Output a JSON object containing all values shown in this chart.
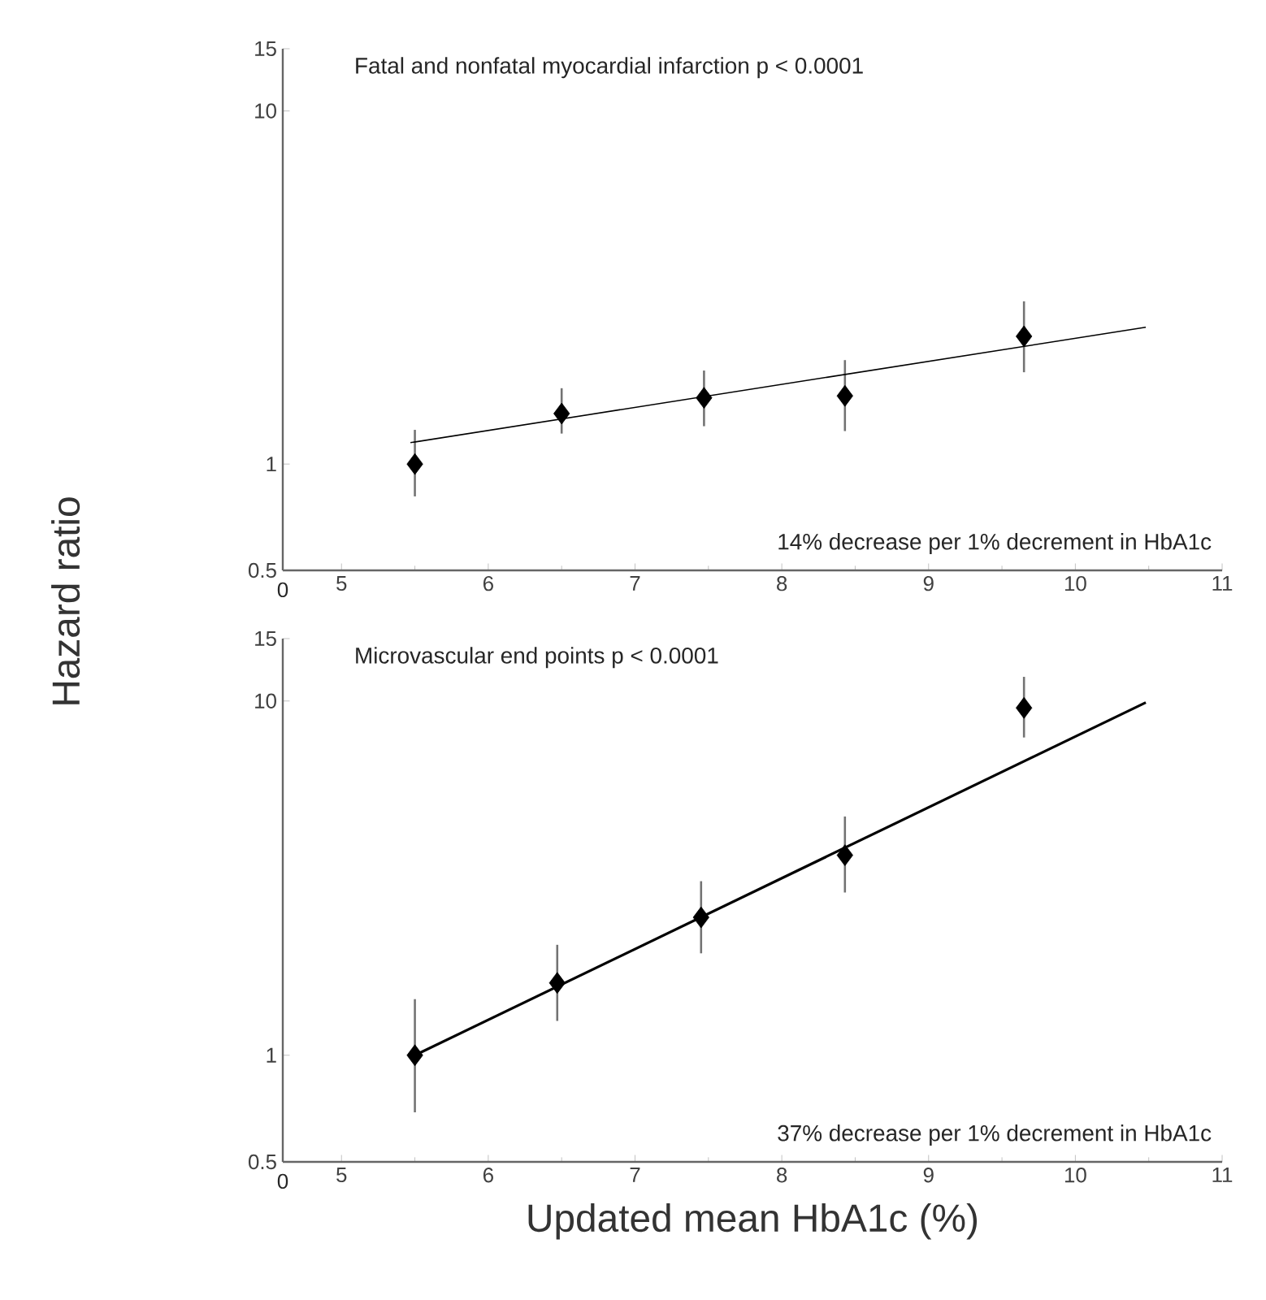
{
  "chart_data": [
    {
      "type": "scatter",
      "title": "Fatal and nonfatal myocardial infarction p < 0.0001",
      "ylabel": "Hazard ratio",
      "annotations": [
        "14% decrease per 1% decrement in HbA1c",
        "0"
      ],
      "log": "y",
      "grid": false,
      "line_style": "solid",
      "xlim": [
        4.6,
        11
      ],
      "ylim": [
        0.5,
        15
      ],
      "xticks": [
        5,
        6,
        7,
        8,
        9,
        10,
        11
      ],
      "yticks": [
        0.5,
        1,
        10,
        15
      ],
      "series": [
        {
          "color": "#000000",
          "marker": "diamond",
          "x": [
            5.5,
            6.5,
            7.47,
            8.43,
            9.65
          ],
          "values": [
            1.0,
            1.39,
            1.54,
            1.56,
            2.3
          ],
          "errors": [
            [
              0.81,
              1.25
            ],
            [
              1.22,
              1.64
            ],
            [
              1.28,
              1.84
            ],
            [
              1.24,
              1.97
            ],
            [
              1.82,
              2.89
            ]
          ]
        },
        {
          "type": "line",
          "marker": "none",
          "color": "#000000",
          "x": [
            5.47,
            10.48
          ],
          "values": [
            1.15,
            2.44
          ]
        }
      ]
    },
    {
      "type": "scatter",
      "title": "Microvascular end points p < 0.0001",
      "xlabel": "Updated mean HbA1c (%)",
      "annotations": [
        "37% decrease per 1% decrement in HbA1c",
        "0"
      ],
      "log": "y",
      "grid": false,
      "line_style": "solid",
      "xlim": [
        4.6,
        11
      ],
      "ylim": [
        0.5,
        15
      ],
      "xticks": [
        5,
        6,
        7,
        8,
        9,
        10,
        11
      ],
      "yticks": [
        0.5,
        1,
        10,
        15
      ],
      "series": [
        {
          "color": "#000000",
          "marker": "diamond",
          "x": [
            5.5,
            6.47,
            7.45,
            8.43,
            9.65
          ],
          "values": [
            1.0,
            1.6,
            2.45,
            3.67,
            9.56
          ],
          "errors": [
            [
              0.69,
              1.44
            ],
            [
              1.25,
              2.05
            ],
            [
              1.94,
              3.1
            ],
            [
              2.88,
              4.72
            ],
            [
              7.89,
              11.7
            ]
          ]
        },
        {
          "type": "line",
          "marker": "none",
          "color": "#000000",
          "x": [
            5.5,
            10.48
          ],
          "values": [
            1.0,
            9.9
          ]
        }
      ]
    }
  ]
}
